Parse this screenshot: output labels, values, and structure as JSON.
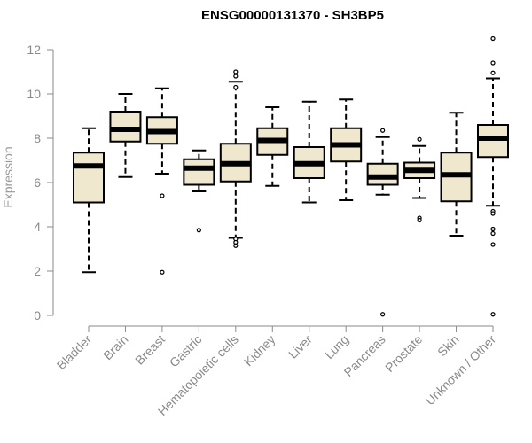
{
  "chart_data": {
    "type": "boxplot",
    "title": "ENSG00000131370 - SH3BP5",
    "ylabel": "Expression",
    "xlabel": "",
    "ylim": [
      0,
      12.5
    ],
    "yticks": [
      0,
      2,
      4,
      6,
      8,
      10,
      12
    ],
    "colors": {
      "box_fill": "#efe8cf",
      "box_stroke": "#000000",
      "median": "#000000",
      "axis": "#8a8a8a"
    },
    "categories": [
      "Bladder",
      "Brain",
      "Breast",
      "Gastric",
      "Hematopoietic cells",
      "Kidney",
      "Liver",
      "Lung",
      "Pancreas",
      "Prostate",
      "Skin",
      "Unknown / Other"
    ],
    "boxes": [
      {
        "name": "Bladder",
        "whisker_low": 1.95,
        "q1": 5.1,
        "median": 6.75,
        "q3": 7.35,
        "whisker_high": 8.45,
        "outliers": []
      },
      {
        "name": "Brain",
        "whisker_low": 6.25,
        "q1": 7.85,
        "median": 8.4,
        "q3": 9.2,
        "whisker_high": 10.0,
        "outliers": []
      },
      {
        "name": "Breast",
        "whisker_low": 6.4,
        "q1": 7.75,
        "median": 8.3,
        "q3": 8.95,
        "whisker_high": 10.25,
        "outliers": [
          5.4,
          1.95
        ]
      },
      {
        "name": "Gastric",
        "whisker_low": 5.6,
        "q1": 5.9,
        "median": 6.65,
        "q3": 7.05,
        "whisker_high": 7.45,
        "outliers": [
          3.85
        ]
      },
      {
        "name": "Hematopoietic cells",
        "whisker_low": 3.5,
        "q1": 6.05,
        "median": 6.85,
        "q3": 7.75,
        "whisker_high": 10.55,
        "outliers": [
          10.8,
          11.0,
          10.3,
          3.45,
          3.3,
          3.15
        ]
      },
      {
        "name": "Kidney",
        "whisker_low": 5.85,
        "q1": 7.25,
        "median": 7.9,
        "q3": 8.45,
        "whisker_high": 9.4,
        "outliers": []
      },
      {
        "name": "Liver",
        "whisker_low": 5.1,
        "q1": 6.2,
        "median": 6.85,
        "q3": 7.6,
        "whisker_high": 9.65,
        "outliers": []
      },
      {
        "name": "Lung",
        "whisker_low": 5.2,
        "q1": 6.95,
        "median": 7.7,
        "q3": 8.45,
        "whisker_high": 9.75,
        "outliers": []
      },
      {
        "name": "Pancreas",
        "whisker_low": 5.45,
        "q1": 5.9,
        "median": 6.25,
        "q3": 6.85,
        "whisker_high": 8.05,
        "outliers": [
          8.35,
          0.05
        ]
      },
      {
        "name": "Prostate",
        "whisker_low": 5.3,
        "q1": 6.2,
        "median": 6.55,
        "q3": 6.9,
        "whisker_high": 7.65,
        "outliers": [
          7.95,
          4.4,
          4.3
        ]
      },
      {
        "name": "Skin",
        "whisker_low": 3.6,
        "q1": 5.15,
        "median": 6.35,
        "q3": 7.35,
        "whisker_high": 9.15,
        "outliers": []
      },
      {
        "name": "Unknown / Other",
        "whisker_low": 4.95,
        "q1": 7.15,
        "median": 8.0,
        "q3": 8.6,
        "whisker_high": 10.7,
        "outliers": [
          12.5,
          11.4,
          10.95,
          4.7,
          4.6,
          3.9,
          3.7,
          3.2,
          0.05
        ]
      }
    ]
  }
}
